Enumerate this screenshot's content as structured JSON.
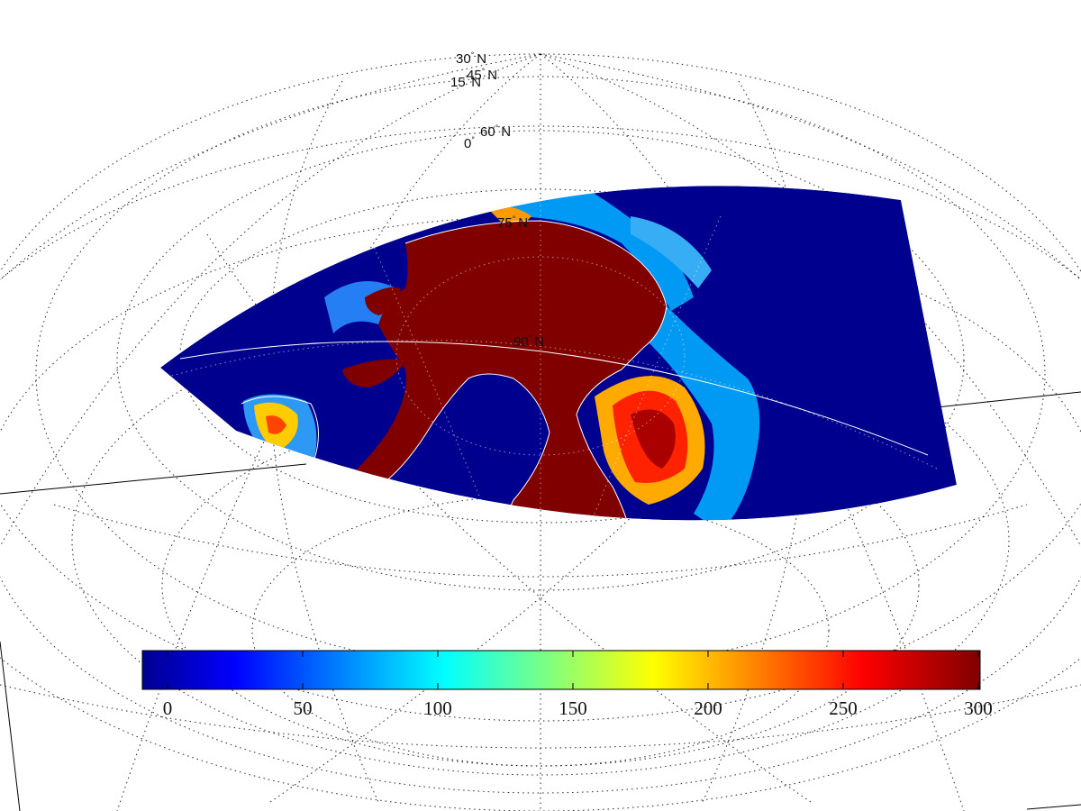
{
  "map": {
    "projection": "polar-perspective",
    "lat_labels": [
      {
        "text": "30",
        "suffix": "N"
      },
      {
        "text": "45",
        "suffix": "N"
      },
      {
        "text": "15",
        "suffix": "N"
      },
      {
        "text": "60",
        "suffix": "N"
      },
      {
        "text": "0",
        "suffix": ""
      },
      {
        "text": "75",
        "suffix": "N"
      },
      {
        "text": "90",
        "suffix": "N"
      }
    ],
    "degree_symbol": "°",
    "colors": {
      "ocean": "#00008f",
      "high": "#800000",
      "coast": "#ffffff"
    }
  },
  "colorbar": {
    "colormap": "jet",
    "min": 0,
    "max": 300,
    "tick_labels": [
      "0",
      "50",
      "100",
      "150",
      "200",
      "250",
      "300"
    ]
  }
}
